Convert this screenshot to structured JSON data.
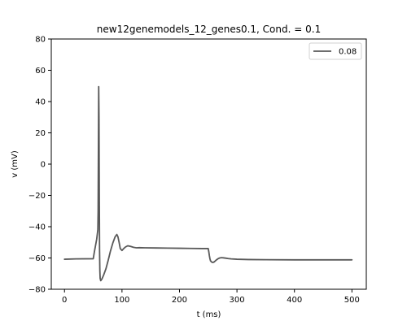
{
  "chart_data": {
    "type": "line",
    "title": "new12genemodels_12_genes0.1, Cond. = 0.1",
    "xlabel": "t (ms)",
    "ylabel": "v (mV)",
    "xlim": [
      -23,
      525
    ],
    "ylim": [
      -80,
      80
    ],
    "xticks": [
      0,
      100,
      200,
      300,
      400,
      500
    ],
    "yticks": [
      -80,
      -60,
      -40,
      -20,
      0,
      20,
      40,
      60,
      80
    ],
    "xtick_labels": [
      "0",
      "100",
      "200",
      "300",
      "400",
      "500"
    ],
    "ytick_labels": [
      "−80",
      "−60",
      "−40",
      "−20",
      "0",
      "20",
      "40",
      "60",
      "80"
    ],
    "grid": false,
    "legend_position": "top-right",
    "series": [
      {
        "name": "0.08",
        "color": "#595959",
        "x": [
          0,
          20,
          50,
          52,
          54,
          56,
          57,
          58,
          58.5,
          59,
          59.5,
          60,
          60.5,
          61,
          61.5,
          62,
          63,
          65,
          68,
          72,
          76,
          80,
          84,
          88,
          91,
          93,
          95,
          97,
          100,
          103,
          106,
          110,
          115,
          120,
          125,
          130,
          140,
          160,
          180,
          200,
          220,
          240,
          250,
          251,
          252,
          253,
          254,
          256,
          258,
          260,
          262,
          264,
          267,
          270,
          273,
          276,
          280,
          285,
          290,
          300,
          320,
          350,
          400,
          450,
          500
        ],
        "y": [
          -60.8,
          -60.6,
          -60.5,
          -56,
          -52,
          -48,
          -45,
          -42,
          -30,
          10,
          49.5,
          30,
          -20,
          -55,
          -68,
          -73,
          -74.5,
          -73.5,
          -71,
          -67,
          -61.5,
          -55.5,
          -50.5,
          -46.5,
          -45,
          -46.5,
          -50,
          -54,
          -55.2,
          -54,
          -53,
          -52.2,
          -52.6,
          -53.2,
          -53.5,
          -53.4,
          -53.5,
          -53.6,
          -53.7,
          -53.8,
          -53.9,
          -54,
          -54,
          -56,
          -58.5,
          -60.5,
          -61.8,
          -62.6,
          -62.9,
          -62.6,
          -62,
          -61.3,
          -60.5,
          -60,
          -59.8,
          -59.9,
          -60.1,
          -60.4,
          -60.6,
          -60.8,
          -61,
          -61.1,
          -61.2,
          -61.2,
          -61.2
        ]
      }
    ]
  }
}
